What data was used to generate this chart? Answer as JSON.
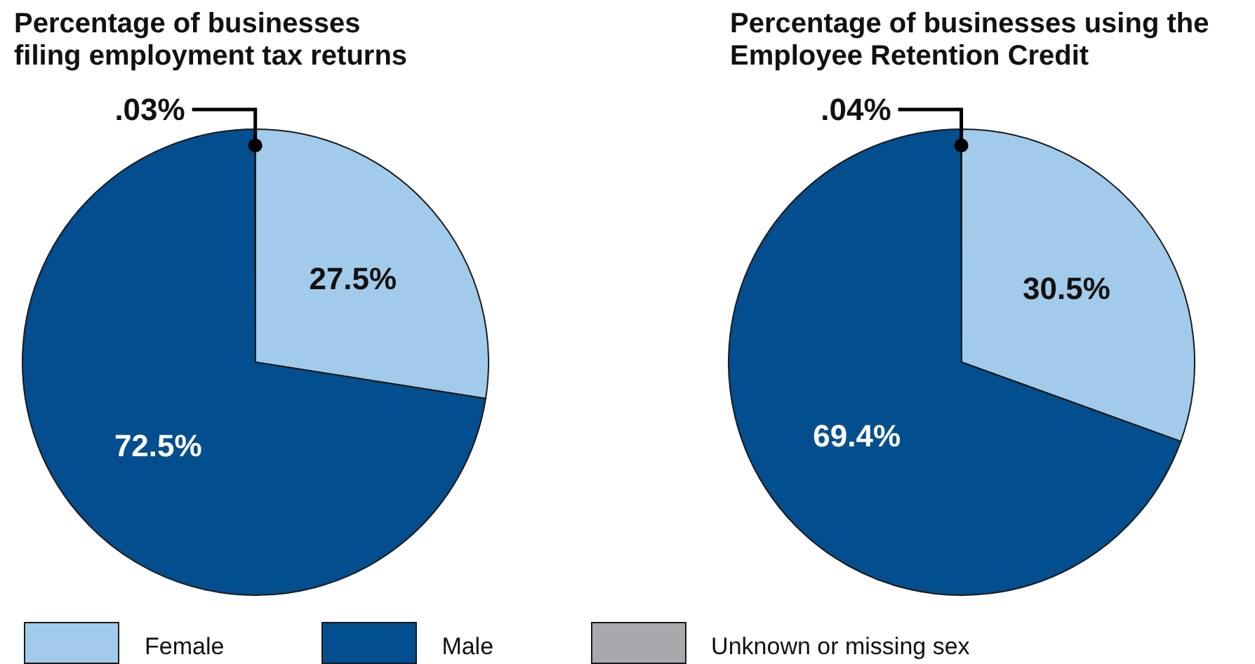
{
  "chart_data": {
    "type": "pie",
    "categories": [
      "Female",
      "Male",
      "Unknown or missing sex"
    ],
    "colors": [
      "#a2cbeb",
      "#034e8e",
      "#a7a9ac"
    ],
    "legend": "bottom",
    "series": [
      {
        "name": "Percentage of businesses filing employment tax returns",
        "values": [
          27.5,
          72.5,
          0.03
        ],
        "value_labels": [
          "27.5%",
          "72.5%",
          ".03%"
        ]
      },
      {
        "name": "Percentage of businesses using the Employee Retention Credit",
        "values": [
          30.5,
          69.4,
          0.04
        ],
        "value_labels": [
          "30.5%",
          "69.4%",
          ".04%"
        ]
      }
    ]
  }
}
